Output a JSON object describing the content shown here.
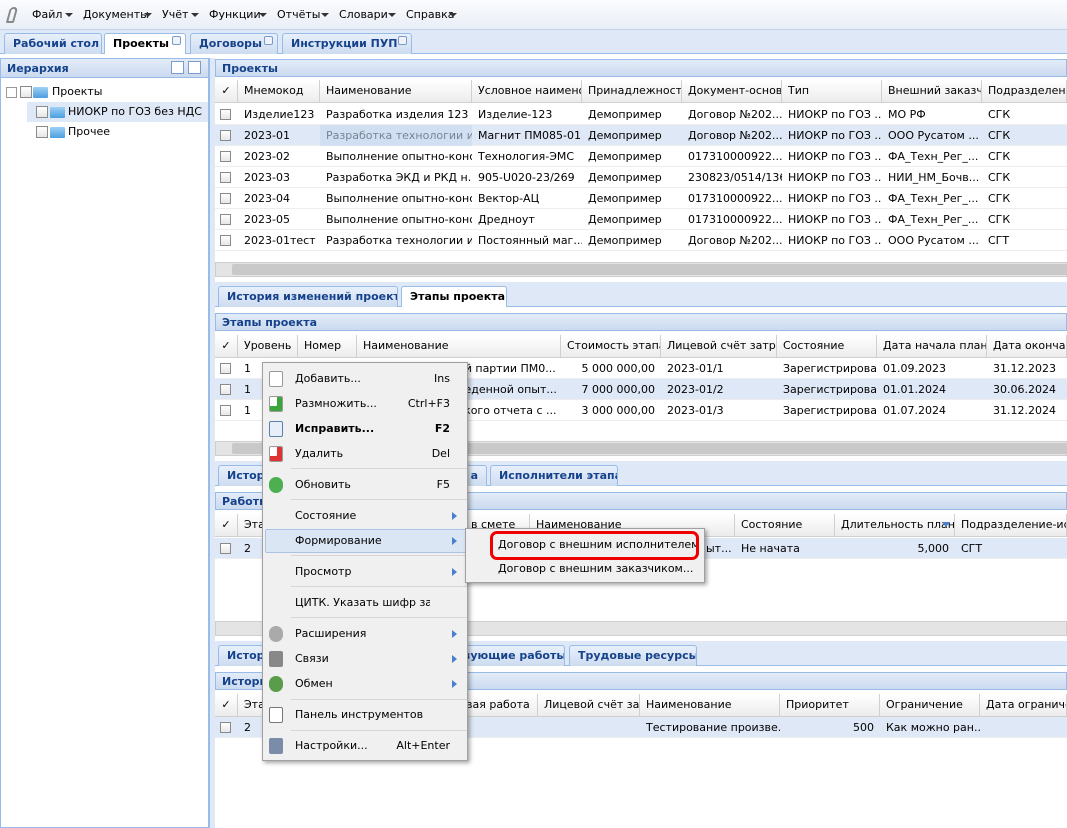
{
  "menu_bar": [
    "Файл",
    "Документы",
    "Учёт",
    "Функции",
    "Отчёты",
    "Словари",
    "Справка"
  ],
  "tabs": [
    "Рабочий стол",
    "Проекты",
    "Договоры",
    "Инструкции ПУП"
  ],
  "hierarchy": {
    "title": "Иерархия",
    "nodes": [
      "Проекты",
      "НИОКР по ГОЗ без НДС",
      "Прочее"
    ]
  },
  "projects": {
    "title": "Проекты",
    "columns": [
      "✓",
      "Мнемокод",
      "Наименование",
      "Условное наименова",
      "Принадлежность",
      "Документ-основан",
      "Тип",
      "Внешний заказчик",
      "Подразделение"
    ],
    "rows": [
      [
        "Изделие123",
        "Разработка изделия 123",
        "Изделие-123",
        "Демопример",
        "Договор №202...",
        "НИОКР по ГОЗ ...",
        "МО РФ",
        "СГК"
      ],
      [
        "2023-01",
        "Разработка технологии и...",
        "Магнит ПМ085-01",
        "Демопример",
        "Договор №202...",
        "НИОКР по ГОЗ ...",
        "ООО Русатом ...",
        "СГК"
      ],
      [
        "2023-02",
        "Выполнение опытно-конс...",
        "Технология-ЭМС",
        "Демопример",
        "017310000922...",
        "НИОКР по ГОЗ ...",
        "ФА_Техн_Рег_...",
        "СГК"
      ],
      [
        "2023-03",
        "Разработка ЭКД и РКД н...",
        "905-U020-23/269",
        "Демопример",
        "230823/0514/136",
        "НИОКР по ГОЗ ...",
        "НИИ_НМ_Бочв...",
        "СГК"
      ],
      [
        "2023-04",
        "Выполнение опытно-конс...",
        "Вектор-АЦ",
        "Демопример",
        "017310000922...",
        "НИОКР по ГОЗ ...",
        "ФА_Техн_Рег_...",
        "СГК"
      ],
      [
        "2023-05",
        "Выполнение опытно-конс...",
        "Дредноут",
        "Демопример",
        "017310000922...",
        "НИОКР по ГОЗ ...",
        "ФА_Техн_Рег_...",
        "СГК"
      ],
      [
        "2023-01тест",
        "Разработка технологии и...",
        "Постоянный маг...",
        "Демопример",
        "Договор №202...",
        "НИОКР по ГОЗ ...",
        "ООО Русатом ...",
        "СГТ"
      ]
    ]
  },
  "project_tabs": [
    "История изменений проекта",
    "Этапы проекта"
  ],
  "stages": {
    "title": "Этапы проекта",
    "columns": [
      "✓",
      "Уровень",
      "Номер",
      "Наименование",
      "Стоимость этапа",
      "Лицевой счёт затрат",
      "Состояние",
      "Дата начала план",
      "Дата окончани"
    ],
    "rows": [
      [
        "1",
        null,
        "ой партии ПМ0...",
        "5 000 000,00",
        "2023-01/1",
        "Зарегистрирован",
        "01.09.2023",
        "31.12.2023"
      ],
      [
        "1",
        null,
        "веденной опыт...",
        "7 000 000,00",
        "2023-01/2",
        "Зарегистрирован",
        "01.01.2024",
        "30.06.2024"
      ],
      [
        "1",
        null,
        "ского отчета с ...",
        "3 000 000,00",
        "2023-01/3",
        "Зарегистрирован",
        "01.07.2024",
        "31.12.2024"
      ]
    ]
  },
  "stage_tabs": [
    "Истор",
    "а",
    "Исполнители этапа"
  ],
  "works": {
    "title": "Работы",
    "columns": [
      "✓",
      "Эта",
      "в смете",
      "Наименование",
      "Состояние",
      "Длительность план",
      "Подразделение-испо"
    ],
    "rows": [
      [
        "2",
        null,
        "ыт...",
        "Не начата",
        "5,000",
        "СГТ"
      ]
    ]
  },
  "work_tabs": [
    "Истор",
    "зующие работы",
    "Трудовые ресурсы"
  ],
  "history": {
    "title": "Истори",
    "columns": [
      "✓",
      "Эта",
      "вая работа",
      "Лицевой счёт затр",
      "Наименование",
      "Приоритет",
      "Ограничение",
      "Дата ограничен"
    ],
    "rows": [
      [
        "2",
        null,
        null,
        "Тестирование произве...",
        "500",
        "Как можно ран..."
      ]
    ]
  },
  "context_menu": {
    "items": [
      {
        "label": "Добавить...",
        "shortcut": "Ins"
      },
      {
        "label": "Размножить...",
        "shortcut": "Ctrl+F3"
      },
      {
        "label": "Исправить...",
        "shortcut": "F2",
        "bold": true
      },
      {
        "label": "Удалить",
        "shortcut": "Del"
      },
      {
        "label": "Обновить",
        "shortcut": "F5"
      },
      {
        "label": "Состояние",
        "submenu": true
      },
      {
        "label": "Формирование",
        "submenu": true,
        "active": true
      },
      {
        "label": "Просмотр",
        "submenu": true
      },
      {
        "label": "ЦИТК. Указать шифр затрат..."
      },
      {
        "label": "Расширения",
        "submenu": true
      },
      {
        "label": "Связи",
        "submenu": true
      },
      {
        "label": "Обмен",
        "submenu": true
      },
      {
        "label": "Панель инструментов"
      },
      {
        "label": "Настройки...",
        "shortcut": "Alt+Enter"
      }
    ]
  },
  "submenu": {
    "items": [
      "Договор с внешним исполнителем...",
      "Договор с внешним заказчиком..."
    ],
    "highlighted": 0
  }
}
